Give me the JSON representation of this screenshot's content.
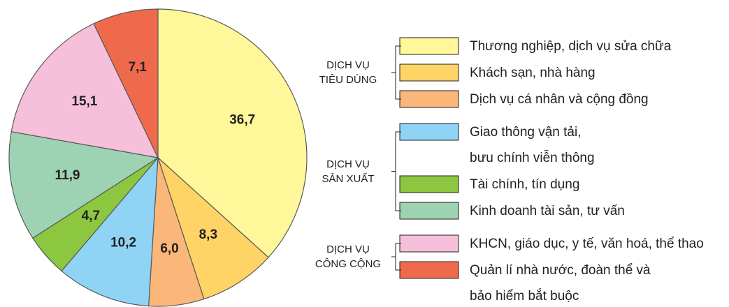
{
  "chart_data": {
    "type": "pie",
    "groups": [
      {
        "label": "DỊCH VỤ\nTIÊU DÙNG",
        "categories": [
          "Thương nghiệp, dịch vụ sửa chữa",
          "Khách sạn, nhà hàng",
          "Dịch vụ cá nhân và cộng đồng"
        ],
        "values": [
          36.7,
          8.3,
          6.0
        ],
        "value_labels": [
          "36,7",
          "8,3",
          "6,0"
        ],
        "colors": [
          "#fff799",
          "#ffd466",
          "#fbb77a"
        ]
      },
      {
        "label": "DỊCH VỤ\nSẢN XUẤT",
        "categories": [
          "Giao thông vận tải,\nbưu chính viễn thông",
          "Tài chính, tín dụng",
          "Kinh doanh tài sản, tư vấn"
        ],
        "values": [
          10.2,
          4.7,
          11.9
        ],
        "value_labels": [
          "10,2",
          "4,7",
          "11,9"
        ],
        "colors": [
          "#8fd3f5",
          "#8dc63f",
          "#9dd3b2"
        ]
      },
      {
        "label": "DỊCH VỤ\nCÔNG CỘNG",
        "categories": [
          "KHCN, giáo dục, y tế, văn hoá, thể thao",
          "Quản lí nhà nước, đoàn thể và\nbảo hiểm bắt buộc"
        ],
        "values": [
          15.1,
          7.1
        ],
        "value_labels": [
          "15,1",
          "7,1"
        ],
        "colors": [
          "#f6c0da",
          "#ef6a4c"
        ]
      }
    ]
  }
}
